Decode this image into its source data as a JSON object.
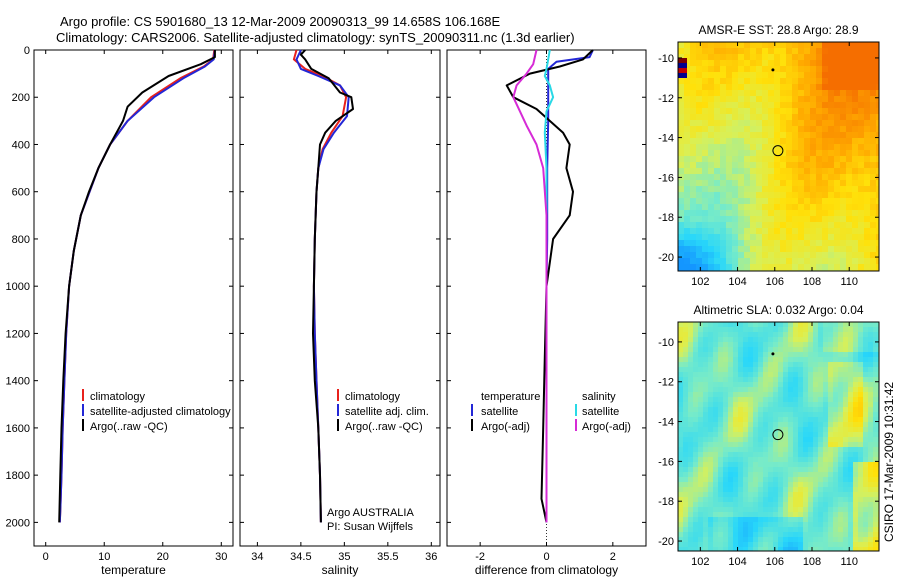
{
  "figure": {
    "title_line1": "Argo profile: CS 5901680_13 12-Mar-2009 20090313_99 14.658S 106.168E",
    "title_line2": "Climatology: CARS2006. Satellite-adjusted climatology: synTS_20090311.nc (1.3d earlier)",
    "credit": "CSIRO 17-Mar-2009 10:31:42",
    "argo_note_1": "Argo AUSTRALIA",
    "argo_note_2": "PI: Susan Wijffels"
  },
  "colors": {
    "climatology": "#e8211c",
    "satellite": "#2327d6",
    "argo": "#000000",
    "sat_diff": "#29d9e6",
    "argo_adj": "#d62bd6"
  },
  "chart_data": [
    {
      "type": "line",
      "id": "temperature",
      "xlabel": "temperature",
      "ylabel": "",
      "xlim": [
        -2,
        32
      ],
      "ylim": [
        2100,
        0
      ],
      "xticks": [
        0,
        10,
        20,
        30
      ],
      "yticks": [
        0,
        200,
        400,
        600,
        800,
        1000,
        1200,
        1400,
        1600,
        1800,
        2000
      ],
      "legend": {
        "placement": "bottom-right",
        "entries": [
          "climatology",
          "satellite-adjusted climatology",
          "Argo(..raw -QC)"
        ]
      },
      "series": [
        {
          "name": "climatology",
          "color_key": "climatology",
          "x": [
            28.8,
            28.6,
            27.0,
            23.0,
            18.0,
            14.0,
            11.0,
            9.0,
            7.5,
            6.0,
            4.8,
            4.0,
            3.5,
            3.2,
            2.9,
            2.7,
            2.5,
            2.4
          ],
          "y": [
            0,
            40,
            70,
            120,
            200,
            300,
            400,
            500,
            600,
            700,
            850,
            1000,
            1200,
            1400,
            1600,
            1800,
            1950,
            2000
          ]
        },
        {
          "name": "satellite-adjusted climatology",
          "color_key": "satellite",
          "x": [
            28.9,
            28.7,
            27.2,
            23.5,
            18.5,
            14.0,
            11.0,
            9.0,
            7.5,
            6.0,
            4.8,
            4.0,
            3.5,
            3.2,
            2.9,
            2.7,
            2.5,
            2.4
          ],
          "y": [
            0,
            40,
            70,
            120,
            200,
            300,
            400,
            500,
            600,
            700,
            850,
            1000,
            1200,
            1400,
            1600,
            1800,
            1950,
            2000
          ]
        },
        {
          "name": "Argo(..raw -QC)",
          "color_key": "argo",
          "x": [
            28.9,
            28.9,
            26.5,
            21.0,
            16.5,
            14.0,
            13.2,
            11.0,
            9.0,
            7.4,
            6.0,
            4.8,
            4.0,
            3.4,
            3.0,
            2.7,
            2.5,
            2.3
          ],
          "y": [
            0,
            30,
            60,
            110,
            180,
            240,
            300,
            400,
            500,
            600,
            700,
            850,
            1000,
            1200,
            1400,
            1600,
            1800,
            2000
          ]
        }
      ]
    },
    {
      "type": "line",
      "id": "salinity",
      "xlabel": "salinity",
      "ylabel": "",
      "xlim": [
        33.8,
        36.1
      ],
      "ylim": [
        2100,
        0
      ],
      "xticks": [
        34,
        34.5,
        35,
        35.5,
        36
      ],
      "yticks": [
        0,
        200,
        400,
        600,
        800,
        1000,
        1200,
        1400,
        1600,
        1800,
        2000
      ],
      "legend": {
        "placement": "bottom-right",
        "entries": [
          "climatology",
          "satellite adj. clim.",
          "Argo(..raw -QC)"
        ]
      },
      "series": [
        {
          "name": "climatology",
          "color_key": "climatology",
          "x": [
            34.45,
            34.42,
            34.55,
            34.75,
            34.95,
            35.02,
            34.98,
            34.85,
            34.75,
            34.7,
            34.68,
            34.66,
            34.65,
            34.66,
            34.68,
            34.7,
            34.72,
            34.73
          ],
          "y": [
            0,
            40,
            80,
            110,
            150,
            200,
            280,
            350,
            420,
            500,
            600,
            800,
            1000,
            1200,
            1400,
            1600,
            1800,
            2000
          ]
        },
        {
          "name": "satellite adj. clim.",
          "color_key": "satellite",
          "x": [
            34.5,
            34.45,
            34.5,
            34.7,
            34.95,
            35.05,
            35.03,
            34.88,
            34.76,
            34.7,
            34.68,
            34.66,
            34.65,
            34.66,
            34.68,
            34.7,
            34.72,
            34.73
          ],
          "y": [
            0,
            40,
            80,
            110,
            150,
            200,
            280,
            350,
            420,
            500,
            600,
            800,
            1000,
            1200,
            1400,
            1600,
            1800,
            2000
          ]
        },
        {
          "name": "Argo(..raw -QC)",
          "color_key": "argo",
          "x": [
            34.55,
            34.5,
            34.55,
            34.62,
            34.82,
            34.95,
            35.08,
            35.1,
            34.9,
            34.78,
            34.72,
            34.7,
            34.68,
            34.66,
            34.64,
            34.66,
            34.7,
            34.72,
            34.73
          ],
          "y": [
            0,
            20,
            40,
            80,
            120,
            180,
            200,
            250,
            300,
            350,
            400,
            500,
            600,
            800,
            1200,
            1400,
            1600,
            1800,
            2000
          ]
        }
      ]
    },
    {
      "type": "line",
      "id": "difference",
      "xlabel": "difference from climatology",
      "ylabel": "",
      "xlim": [
        -3,
        3
      ],
      "ylim": [
        2100,
        0
      ],
      "xticks": [
        -2,
        0,
        2
      ],
      "yticks": [
        0,
        200,
        400,
        600,
        800,
        1000,
        1200,
        1400,
        1600,
        1800,
        2000
      ],
      "legend": {
        "placement": "bottom",
        "col1_header": "temperature",
        "col2_header": "salinity",
        "col1_entries": [
          "satellite",
          "Argo(-adj)"
        ],
        "col2_entries": [
          "satellite",
          "Argo(-adj)"
        ]
      },
      "series": [
        {
          "name": "temperature satellite",
          "color_key": "satellite",
          "x": [
            1.4,
            1.3,
            0.3,
            0.05,
            0.05,
            0.05,
            0.02,
            0.02,
            0.0,
            0.0,
            0.0,
            0.0
          ],
          "y": [
            0,
            30,
            50,
            80,
            150,
            300,
            500,
            800,
            1000,
            1400,
            1800,
            2000
          ]
        },
        {
          "name": "temperature Argo(-adj)",
          "color_key": "argo",
          "x": [
            1.4,
            1.1,
            0.4,
            -0.5,
            -1.2,
            -1.0,
            -0.3,
            0.1,
            0.5,
            0.7,
            0.6,
            0.8,
            0.7,
            0.2,
            0.0,
            -0.05,
            -0.1,
            -0.15,
            0.0
          ],
          "y": [
            0,
            40,
            70,
            100,
            150,
            200,
            250,
            300,
            350,
            400,
            500,
            600,
            700,
            800,
            1000,
            1300,
            1600,
            1900,
            2000
          ]
        },
        {
          "name": "salinity satellite",
          "color_key": "sat_diff",
          "x": [
            0.1,
            0.05,
            0.0,
            -0.05,
            0.1,
            0.2,
            0.0,
            -0.05,
            0.0,
            0.0,
            0.0,
            0.0
          ],
          "y": [
            0,
            40,
            80,
            110,
            150,
            200,
            260,
            350,
            500,
            800,
            1400,
            2000
          ]
        },
        {
          "name": "salinity Argo(-adj)",
          "color_key": "argo_adj",
          "x": [
            -0.3,
            -0.4,
            -0.6,
            -0.9,
            -1.0,
            -0.8,
            -0.6,
            -0.3,
            -0.1,
            0.0,
            0.0,
            0.0
          ],
          "y": [
            0,
            60,
            100,
            150,
            200,
            260,
            320,
            400,
            500,
            700,
            1200,
            2000
          ]
        }
      ]
    },
    {
      "type": "heatmap",
      "id": "sst-map",
      "title": "AMSR-E SST: 28.8 Argo: 28.9",
      "xlim": [
        100.8,
        111.6
      ],
      "ylim": [
        -20.7,
        -9.2
      ],
      "xticks": [
        102,
        104,
        106,
        108,
        110
      ],
      "yticks": [
        -10,
        -12,
        -14,
        -16,
        -18,
        -20
      ],
      "marker": {
        "lon": 106.168,
        "lat": -14.658
      },
      "float_track_point": {
        "lon": 105.9,
        "lat": -10.6
      }
    },
    {
      "type": "heatmap",
      "id": "sla-map",
      "title": "Altimetric SLA: 0.032 Argo: 0.04",
      "xlim": [
        100.8,
        111.6
      ],
      "ylim": [
        -20.5,
        -9.0
      ],
      "xticks": [
        102,
        104,
        106,
        108,
        110
      ],
      "yticks": [
        -10,
        -12,
        -14,
        -16,
        -18,
        -20
      ],
      "marker": {
        "lon": 106.168,
        "lat": -14.658
      },
      "float_track_point": {
        "lon": 105.9,
        "lat": -10.6
      }
    }
  ]
}
